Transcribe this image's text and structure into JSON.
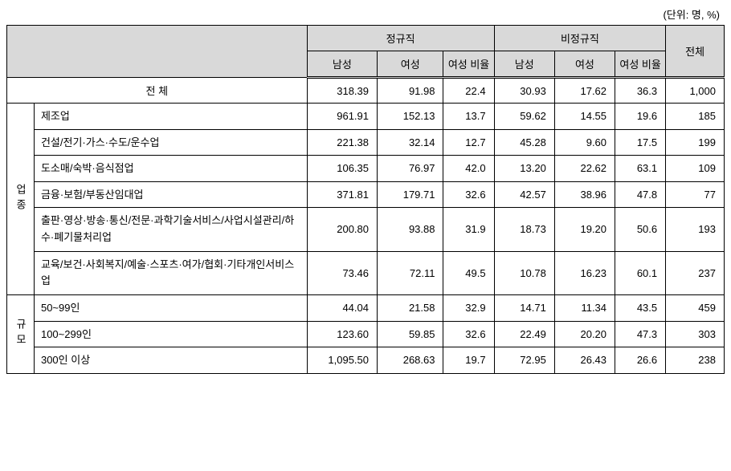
{
  "unit_label": "(단위: 명, %)",
  "headers": {
    "group_regular": "정규직",
    "group_nonregular": "비정규직",
    "total": "전체",
    "male": "남성",
    "female": "여성",
    "female_ratio": "여성\n비율"
  },
  "category_groups": {
    "industry": "업종",
    "size": "규모"
  },
  "total_row_label": "전 체",
  "industry_rows": [
    {
      "label": "제조업"
    },
    {
      "label": "건설/전기·가스·수도/운수업"
    },
    {
      "label": "도소매/숙박·음식점업"
    },
    {
      "label": "금융·보험/부동산임대업"
    },
    {
      "label": "출판·영상·방송·통신/전문·과학기술서비스/사업시설관리/하수·폐기물처리업"
    },
    {
      "label": "교육/보건·사회복지/예술·스포츠·여가/협회·기타개인서비스업"
    }
  ],
  "size_rows": [
    {
      "label": "50~99인"
    },
    {
      "label": "100~299인"
    },
    {
      "label": "300인 이상"
    }
  ],
  "data": {
    "total": {
      "reg_m": "318.39",
      "reg_f": "91.98",
      "reg_r": "22.4",
      "nr_m": "30.93",
      "nr_f": "17.62",
      "nr_r": "36.3",
      "tot": "1,000"
    },
    "industry": [
      {
        "reg_m": "961.91",
        "reg_f": "152.13",
        "reg_r": "13.7",
        "nr_m": "59.62",
        "nr_f": "14.55",
        "nr_r": "19.6",
        "tot": "185"
      },
      {
        "reg_m": "221.38",
        "reg_f": "32.14",
        "reg_r": "12.7",
        "nr_m": "45.28",
        "nr_f": "9.60",
        "nr_r": "17.5",
        "tot": "199"
      },
      {
        "reg_m": "106.35",
        "reg_f": "76.97",
        "reg_r": "42.0",
        "nr_m": "13.20",
        "nr_f": "22.62",
        "nr_r": "63.1",
        "tot": "109"
      },
      {
        "reg_m": "371.81",
        "reg_f": "179.71",
        "reg_r": "32.6",
        "nr_m": "42.57",
        "nr_f": "38.96",
        "nr_r": "47.8",
        "tot": "77"
      },
      {
        "reg_m": "200.80",
        "reg_f": "93.88",
        "reg_r": "31.9",
        "nr_m": "18.73",
        "nr_f": "19.20",
        "nr_r": "50.6",
        "tot": "193"
      },
      {
        "reg_m": "73.46",
        "reg_f": "72.11",
        "reg_r": "49.5",
        "nr_m": "10.78",
        "nr_f": "16.23",
        "nr_r": "60.1",
        "tot": "237"
      }
    ],
    "size": [
      {
        "reg_m": "44.04",
        "reg_f": "21.58",
        "reg_r": "32.9",
        "nr_m": "14.71",
        "nr_f": "11.34",
        "nr_r": "43.5",
        "tot": "459"
      },
      {
        "reg_m": "123.60",
        "reg_f": "59.85",
        "reg_r": "32.6",
        "nr_m": "22.49",
        "nr_f": "20.20",
        "nr_r": "47.3",
        "tot": "303"
      },
      {
        "reg_m": "1,095.50",
        "reg_f": "268.63",
        "reg_r": "19.7",
        "nr_m": "72.95",
        "nr_f": "26.43",
        "nr_r": "26.6",
        "tot": "238"
      }
    ]
  },
  "col_widths": {
    "cat": "28px",
    "label": "280px",
    "reg_m": "72px",
    "reg_f": "68px",
    "reg_r": "52px",
    "nr_m": "62px",
    "nr_f": "62px",
    "nr_r": "52px",
    "tot": "60px"
  }
}
